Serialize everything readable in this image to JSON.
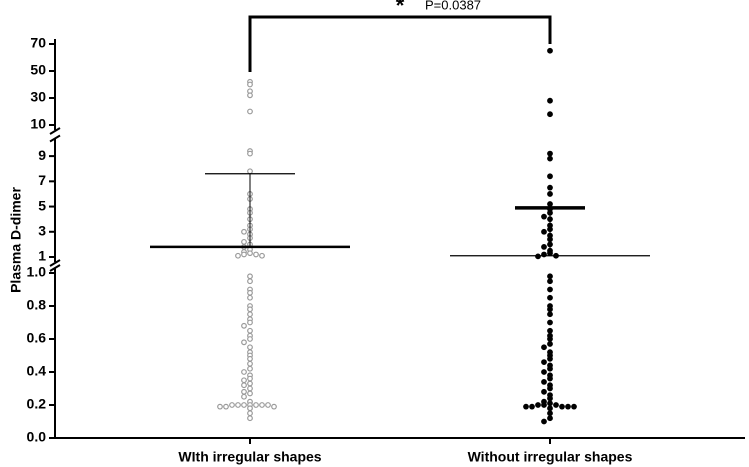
{
  "chart_data": {
    "type": "scatter",
    "ylabel": "Plasma D-dimer",
    "categories": [
      "WIth irregular shapes",
      "Without irregular shapes"
    ],
    "segments": [
      {
        "ylim": [
          0,
          1
        ],
        "yticks": [
          {
            "value": 0,
            "label": "0.0"
          },
          0.2,
          0.4,
          0.6,
          0.8,
          {
            "value": 1,
            "label": "1.0"
          }
        ]
      },
      {
        "ylim": [
          1,
          10
        ],
        "yticks": [
          1,
          3,
          5,
          7,
          9
        ]
      },
      {
        "ylim": [
          10,
          70
        ],
        "yticks": [
          10,
          30,
          50,
          70
        ]
      }
    ],
    "series": [
      {
        "color": "#9a9a9a",
        "values": [
          42,
          40,
          35,
          32,
          20,
          9.4,
          9.2,
          7.8,
          6,
          5.6,
          4.8,
          4.5,
          4,
          3.5,
          3.2,
          3,
          2.8,
          2.5,
          2.2,
          2,
          1.8,
          1.6,
          1.4,
          1.3,
          1.2,
          1.2,
          1.1,
          1.1,
          0.98,
          0.95,
          0.9,
          0.88,
          0.85,
          0.8,
          0.78,
          0.75,
          0.72,
          0.7,
          0.68,
          0.65,
          0.62,
          0.6,
          0.58,
          0.55,
          0.52,
          0.5,
          0.48,
          0.45,
          0.42,
          0.4,
          0.38,
          0.36,
          0.35,
          0.33,
          0.32,
          0.3,
          0.28,
          0.27,
          0.25,
          0.22,
          0.2,
          0.2,
          0.2,
          0.2,
          0.2,
          0.2,
          0.2,
          0.19,
          0.19,
          0.19,
          0.18,
          0.15,
          0.12
        ]
      },
      {
        "color": "#000000",
        "values": [
          65,
          28,
          18,
          9.2,
          8.8,
          7.4,
          6.5,
          6,
          5.2,
          4.8,
          4.5,
          4.2,
          4,
          3.5,
          3.2,
          3,
          2.7,
          2.4,
          2,
          1.8,
          1.5,
          1.3,
          1.2,
          1.1,
          1.05,
          0.98,
          0.95,
          0.9,
          0.85,
          0.8,
          0.78,
          0.75,
          0.7,
          0.65,
          0.62,
          0.6,
          0.57,
          0.55,
          0.52,
          0.5,
          0.48,
          0.46,
          0.44,
          0.42,
          0.4,
          0.38,
          0.36,
          0.34,
          0.32,
          0.3,
          0.28,
          0.26,
          0.24,
          0.22,
          0.21,
          0.2,
          0.2,
          0.2,
          0.19,
          0.19,
          0.19,
          0.19,
          0.19,
          0.18,
          0.15,
          0.12,
          0.1
        ]
      }
    ],
    "thick_lines": [
      1.8,
      4.9
    ],
    "thin_lines": [
      7.6,
      1.1
    ],
    "significance": "*",
    "p_value": "P=0.0387"
  }
}
